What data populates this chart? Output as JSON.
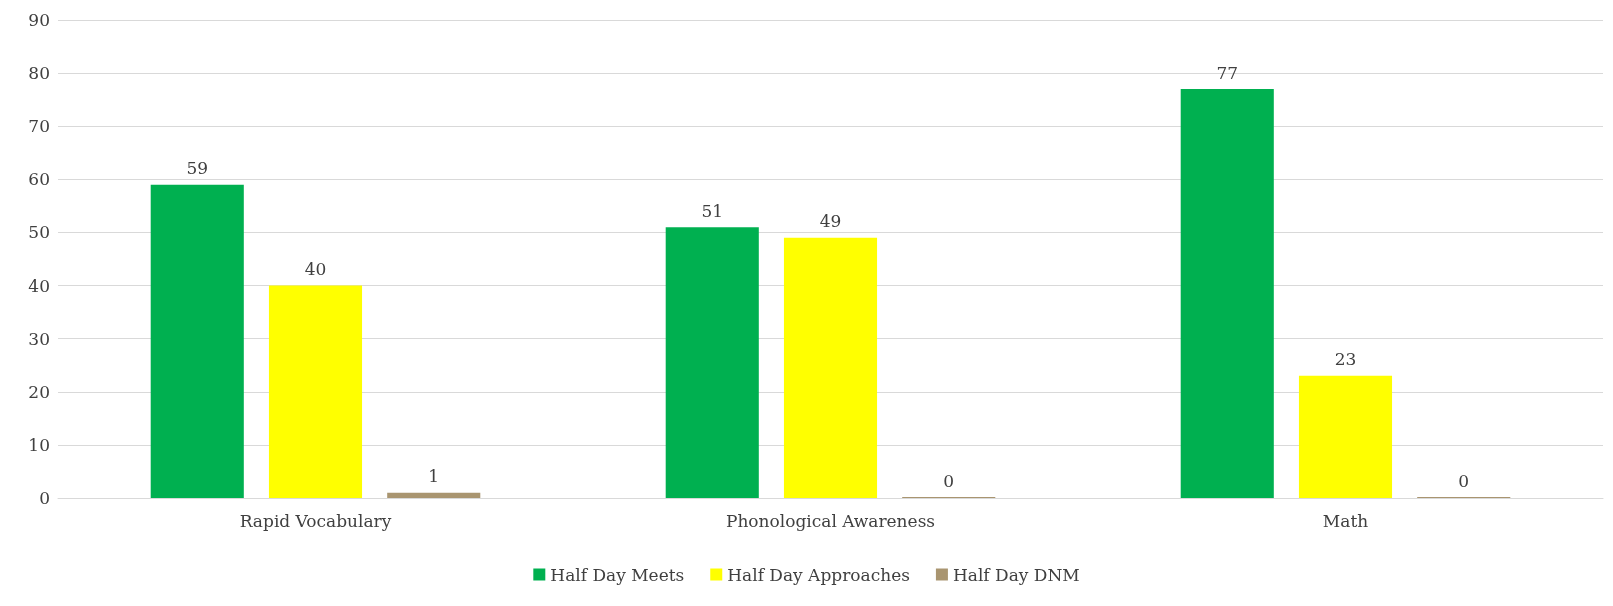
{
  "chart_data": {
    "type": "bar",
    "categories": [
      "Rapid Vocabulary",
      "Phonological Awareness",
      "Math"
    ],
    "series": [
      {
        "name": "Half Day Meets",
        "color": "#00b050",
        "values": [
          59,
          51,
          77
        ]
      },
      {
        "name": "Half Day Approaches",
        "color": "#ffff00",
        "values": [
          40,
          49,
          23
        ]
      },
      {
        "name": "Half Day DNM",
        "color": "#a99570",
        "values": [
          1,
          0,
          0
        ]
      }
    ],
    "ylim": [
      0,
      90
    ],
    "yticks": [
      0,
      10,
      20,
      30,
      40,
      50,
      60,
      70,
      80,
      90
    ],
    "grid": "y",
    "legend": "bottom",
    "data_labels": true
  }
}
